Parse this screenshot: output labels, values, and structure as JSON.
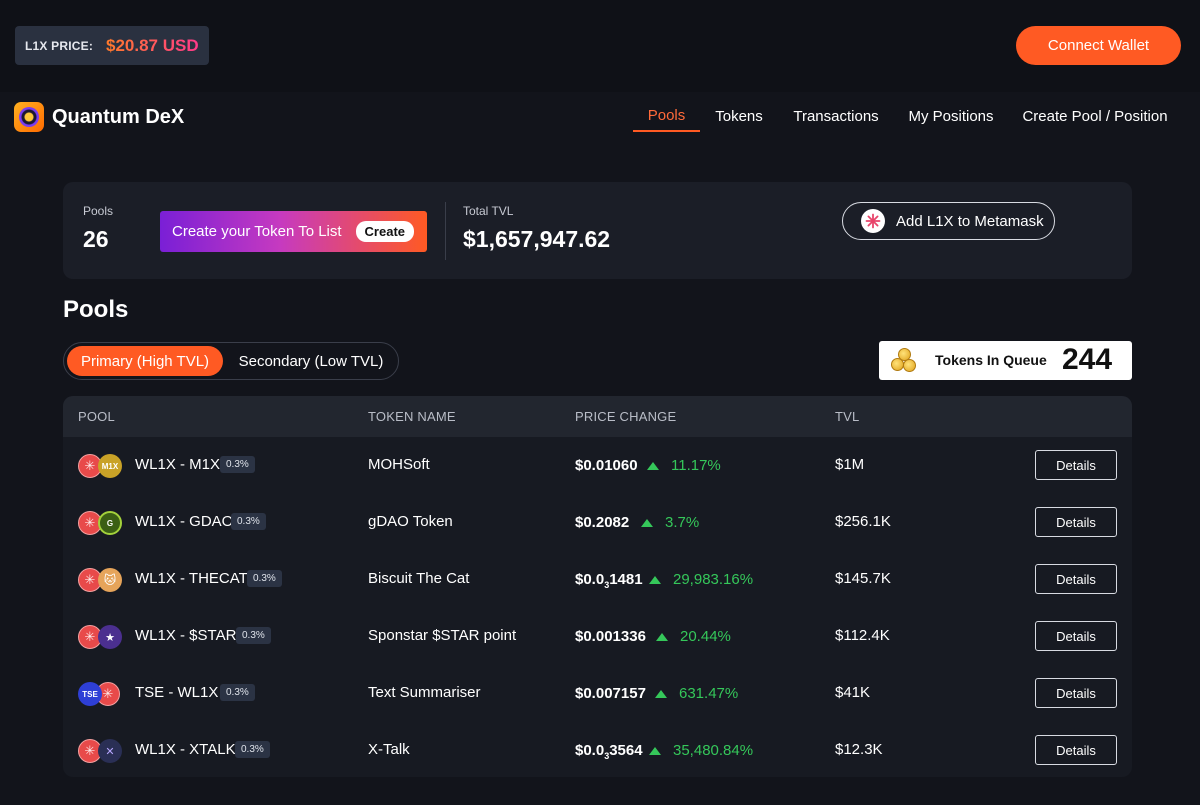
{
  "header": {
    "price_label": "L1X PRICE:",
    "price_value": "$20.87 USD",
    "connect_label": "Connect Wallet"
  },
  "brand": {
    "name": "Quantum DeX"
  },
  "nav": [
    {
      "label": "Pools",
      "active": true
    },
    {
      "label": "Tokens"
    },
    {
      "label": "Transactions"
    },
    {
      "label": "My Positions"
    },
    {
      "label": "Create Pool / Position"
    }
  ],
  "stats": {
    "pools_label": "Pools",
    "pools_count": "26",
    "create_token_label": "Create your Token To List",
    "create_button": "Create",
    "tvl_label": "Total TVL",
    "tvl_value": "$1,657,947.62",
    "metamask_label": "Add L1X to Metamask"
  },
  "pools_section": {
    "title": "Pools",
    "tabs": [
      "Primary (High TVL)",
      "Secondary (Low TVL)"
    ],
    "queue_label": "Tokens In Queue",
    "queue_count": "244"
  },
  "table": {
    "headers": [
      "POOL",
      "TOKEN NAME",
      "PRICE CHANGE",
      "TVL"
    ],
    "details_label": "Details",
    "rows": [
      {
        "pair": "WL1X - M1X",
        "fee": "0.3%",
        "token": "MOHSoft",
        "price": "$0.01060",
        "change": "11.17%",
        "tvl": "$1M",
        "icon2": "M1X",
        "icon2_color": "#c9a227"
      },
      {
        "pair": "WL1X - GDAO",
        "fee": "0.3%",
        "token": "gDAO Token",
        "price": "$0.2082",
        "change": "3.7%",
        "tvl": "$256.1K",
        "icon2": "G",
        "icon2_color": "#4c6b1e"
      },
      {
        "pair": "WL1X - THECAT",
        "fee": "0.3%",
        "token": "Biscuit The Cat",
        "price_prefix": "$0.0",
        "price_sub": "3",
        "price_rest": "1481",
        "change": "29,983.16%",
        "tvl": "$145.7K",
        "icon2": "🐱",
        "icon2_color": "#e6a45a"
      },
      {
        "pair": "WL1X - $STAR",
        "fee": "0.3%",
        "token": "Sponstar $STAR point",
        "price": "$0.001336",
        "change": "20.44%",
        "tvl": "$112.4K",
        "icon2": "★",
        "icon2_color": "#4b2f8f"
      },
      {
        "pair": "TSE - WL1X",
        "fee": "0.3%",
        "token": "Text Summariser",
        "price": "$0.007157",
        "change": "631.47%",
        "tvl": "$41K",
        "icon1": "TSE",
        "icon1_color": "#2e3fd6"
      },
      {
        "pair": "WL1X - XTALK",
        "fee": "0.3%",
        "token": "X-Talk",
        "price_prefix": "$0.0",
        "price_sub": "3",
        "price_rest": "3564",
        "change": "35,480.84%",
        "tvl": "$12.3K",
        "icon2": "✕",
        "icon2_color": "#2a2f55"
      }
    ]
  }
}
